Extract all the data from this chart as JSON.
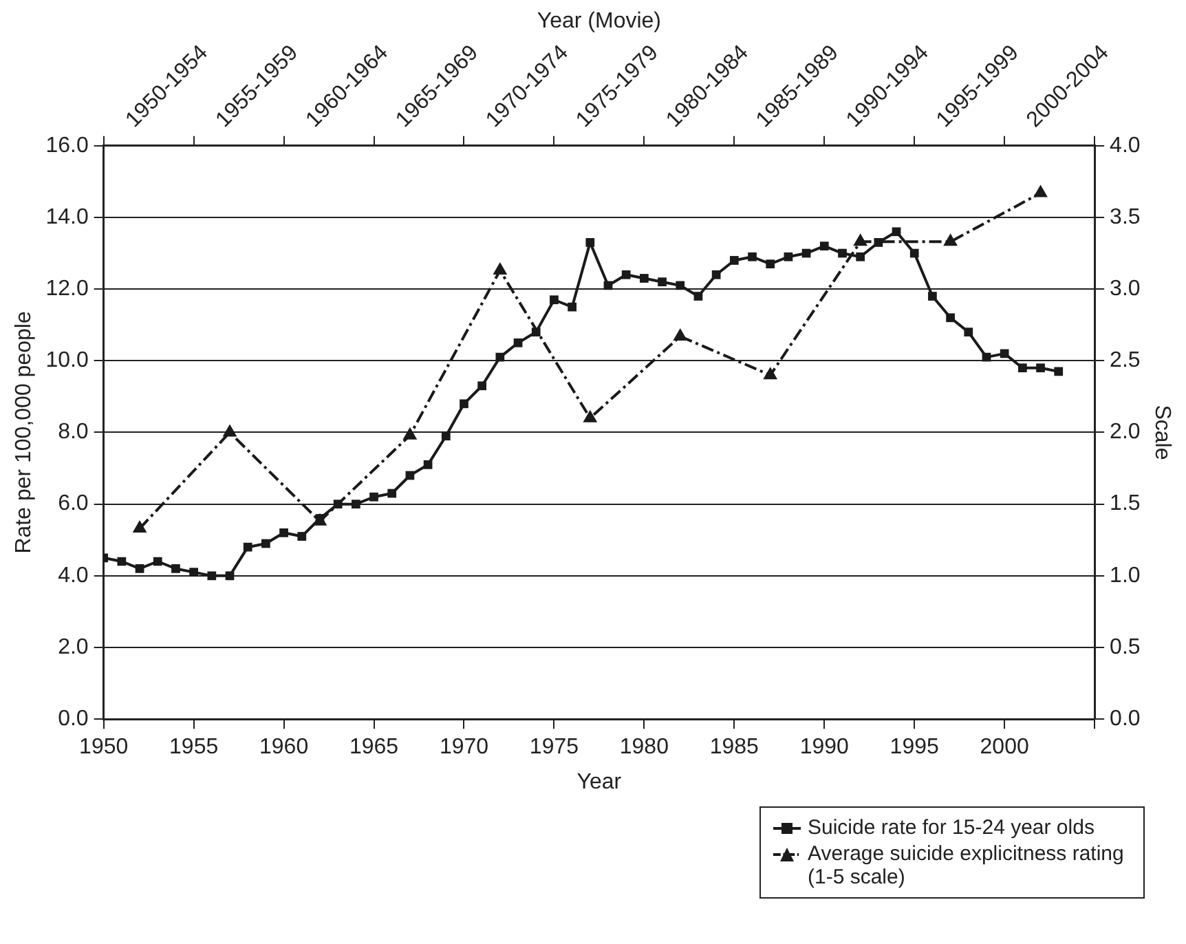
{
  "chart_data": {
    "type": "line",
    "xlabel": "Year",
    "ylabel": "Rate per 100,000 people",
    "y2label": "Scale",
    "x2label": "Year (Movie)",
    "xlim": [
      1950,
      2005
    ],
    "xticks": [
      1950,
      1955,
      1960,
      1965,
      1970,
      1975,
      1980,
      1985,
      1990,
      1995,
      2000,
      {
        "value": 2005,
        "label": null
      }
    ],
    "annotations": [
      "1950-1954",
      "1955-1959",
      "1960-1964",
      "1965-1969",
      "1970-1974",
      "1975-1979",
      "1980-1984",
      "1985-1989",
      "1990-1994",
      "1995-1999",
      "2000-2004"
    ],
    "ylim": [
      0,
      16
    ],
    "yticks": [
      {
        "value": 0,
        "label": "0.0"
      },
      {
        "value": 2,
        "label": "2.0"
      },
      {
        "value": 4,
        "label": "4.0"
      },
      {
        "value": 6,
        "label": "6.0"
      },
      {
        "value": 8,
        "label": "8.0"
      },
      {
        "value": 10,
        "label": "10.0"
      },
      {
        "value": 12,
        "label": "12.0"
      },
      {
        "value": 14,
        "label": "14.0"
      },
      {
        "value": 16,
        "label": "16.0"
      }
    ],
    "y2lim": [
      0,
      4
    ],
    "y2ticks": [
      {
        "value": 0,
        "label": "0.0"
      },
      0.5,
      {
        "value": 1,
        "label": "1.0"
      },
      1.5,
      {
        "value": 2,
        "label": "2.0"
      },
      2.5,
      {
        "value": 3,
        "label": "3.0"
      },
      3.5,
      {
        "value": 4,
        "label": "4.0"
      }
    ],
    "grid": "y",
    "legend": "bottom right",
    "series": [
      {
        "name": "Suicide rate for 15-24 year olds",
        "color": "#1a1a1a",
        "marker": "square",
        "line_style": "solid",
        "x": [
          1950,
          1951,
          1952,
          1953,
          1954,
          1955,
          1956,
          1957,
          1958,
          1959,
          1960,
          1961,
          1962,
          1963,
          1964,
          1965,
          1966,
          1967,
          1968,
          1969,
          1970,
          1971,
          1972,
          1973,
          1974,
          1975,
          1976,
          1977,
          1978,
          1979,
          1980,
          1981,
          1982,
          1983,
          1984,
          1985,
          1986,
          1987,
          1988,
          1989,
          1990,
          1991,
          1992,
          1993,
          1994,
          1995,
          1996,
          1997,
          1998,
          1999,
          2000,
          2001,
          2002,
          2003
        ],
        "values": [
          4.5,
          4.4,
          4.2,
          4.4,
          4.2,
          4.1,
          4.0,
          4.0,
          4.8,
          4.9,
          5.2,
          5.1,
          5.6,
          6.0,
          6.0,
          6.2,
          6.3,
          6.8,
          7.1,
          7.9,
          8.8,
          9.3,
          10.1,
          10.5,
          10.8,
          11.7,
          11.5,
          13.3,
          12.1,
          12.4,
          12.3,
          12.2,
          12.1,
          11.8,
          12.4,
          12.8,
          12.9,
          12.7,
          12.9,
          13.0,
          13.2,
          13.0,
          12.9,
          13.3,
          13.6,
          13.0,
          11.8,
          11.2,
          10.8,
          10.1,
          10.2,
          9.8,
          9.8,
          9.7
        ]
      },
      {
        "name": "Average suicide explicitness rating (1-5 scale)",
        "color": "#1a1a1a",
        "marker": "triangle",
        "line_style": "dashed",
        "axis": "y2",
        "x": [
          1952,
          1957,
          1962,
          1967,
          1972,
          1977,
          1982,
          1987,
          1992,
          1997,
          2002
        ],
        "values": [
          1.33,
          2.0,
          1.38,
          1.98,
          3.13,
          2.1,
          2.67,
          2.4,
          3.33,
          3.33,
          3.67
        ]
      }
    ]
  }
}
